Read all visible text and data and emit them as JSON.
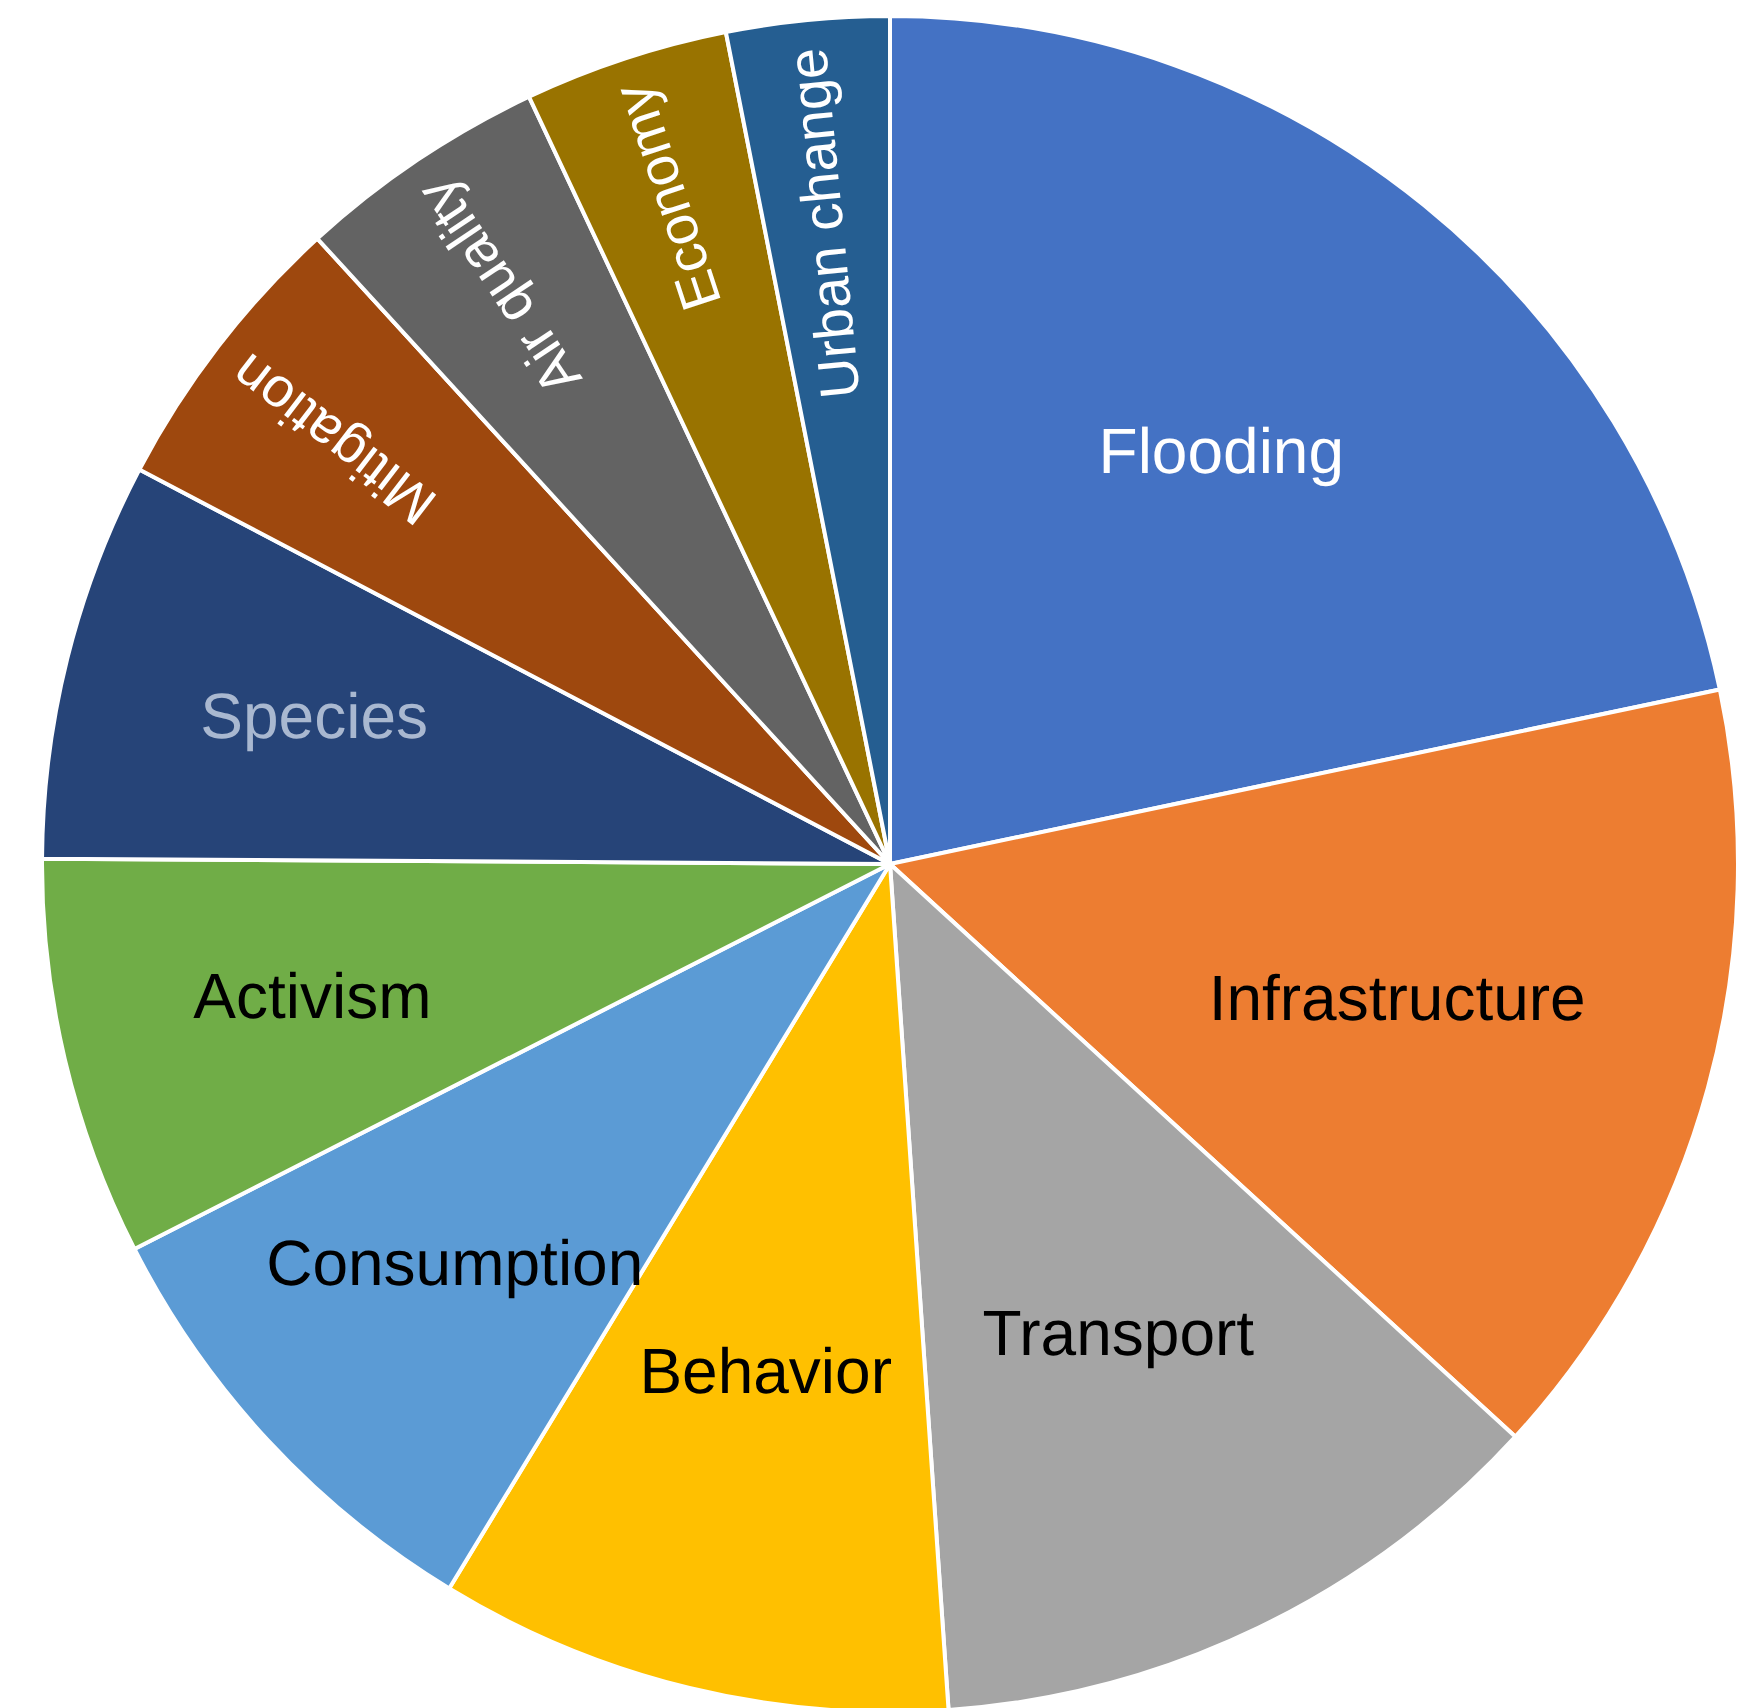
{
  "chart_data": {
    "type": "pie",
    "categories": [
      "Flooding",
      "Infrastructure",
      "Transport",
      "Behavior",
      "Consumption",
      "Activism",
      "Species",
      "Mitigation",
      "Air quality",
      "Economy",
      "Urban change"
    ],
    "values": [
      21.7,
      15.1,
      12.1,
      9.8,
      8.8,
      7.6,
      7.6,
      5.5,
      4.8,
      3.9,
      3.1
    ],
    "colors": [
      "#4472c4",
      "#ed7d31",
      "#a5a5a5",
      "#ffc000",
      "#5b9bd5",
      "#70ad47",
      "#264478",
      "#9e480e",
      "#636363",
      "#997300",
      "#255e91"
    ],
    "legend": false
  }
}
